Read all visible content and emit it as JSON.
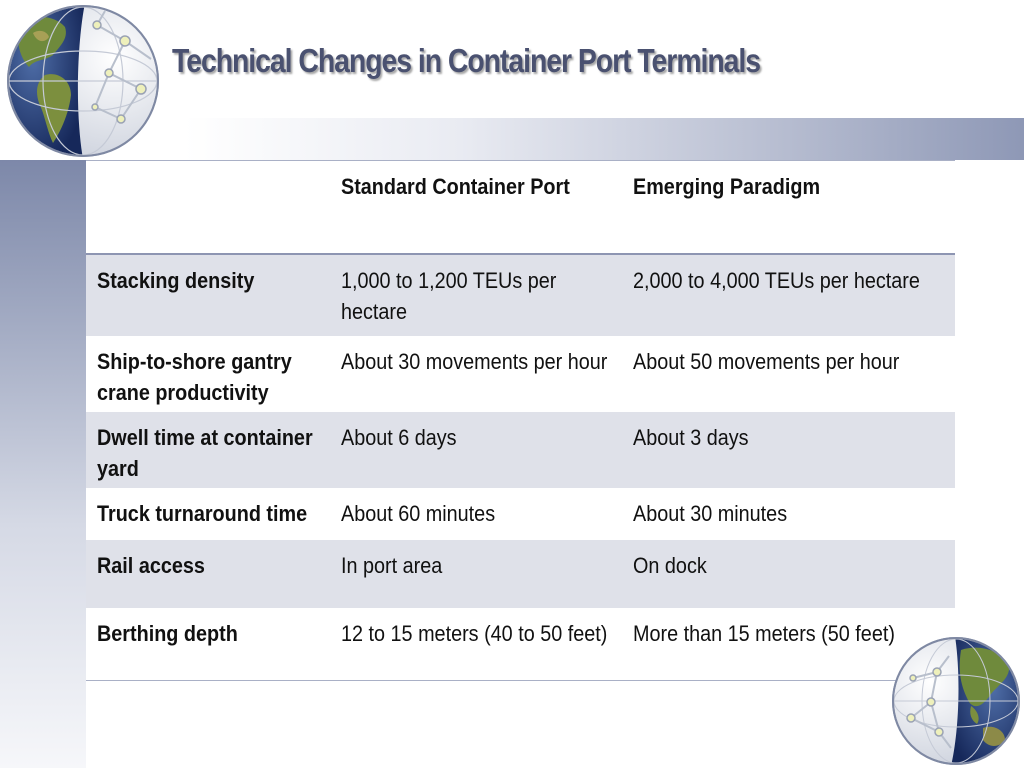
{
  "slide": {
    "title": "Technical Changes in Container Port Terminals"
  },
  "table": {
    "headers": [
      "",
      "Standard Container Port",
      "Emerging Paradigm"
    ],
    "rows": [
      [
        "Stacking density",
        "1,000 to 1,200 TEUs per hectare",
        "2,000 to 4,000 TEUs per hectare"
      ],
      [
        "Ship-to-shore gantry crane productivity",
        "About 30 movements per hour",
        "About 50 movements per hour"
      ],
      [
        "Dwell time at container yard",
        "About 6 days",
        "About 3 days"
      ],
      [
        "Truck turnaround time",
        "About 60 minutes",
        "About 30 minutes"
      ],
      [
        "Rail access",
        "In port area",
        "On dock"
      ],
      [
        "Berthing depth",
        "12 to 15 meters (40 to 50 feet)",
        "More than 15 meters (50 feet)"
      ]
    ]
  },
  "icons": {
    "top": "globe-network-icon",
    "bottom": "globe-network-icon"
  }
}
